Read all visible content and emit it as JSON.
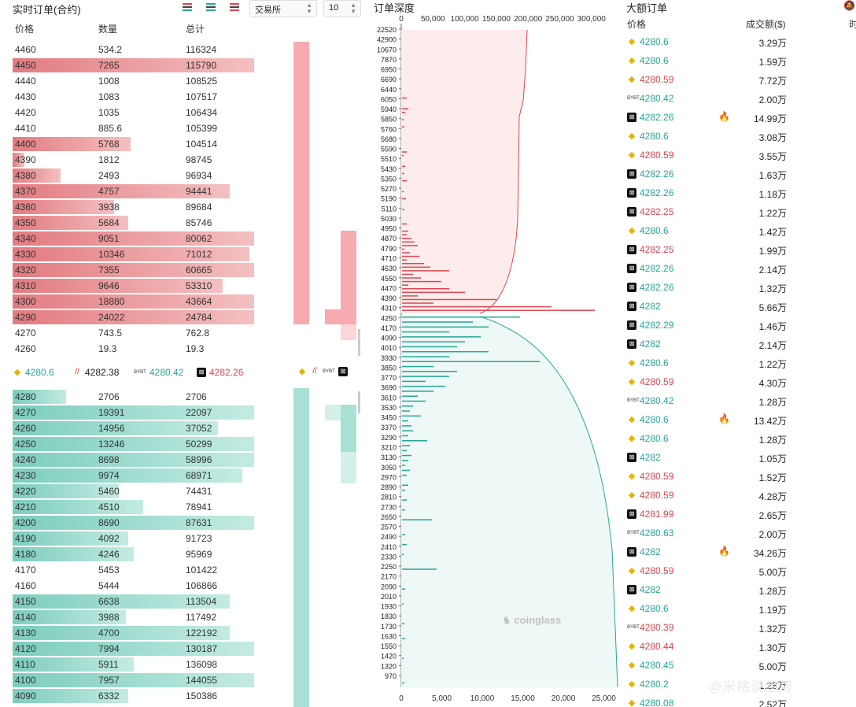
{
  "orderbook": {
    "title": "实时订单(合约)",
    "exchange_select": "交易所",
    "depth_select": "10",
    "col_price": "价格",
    "col_qty": "数量",
    "col_total": "总计",
    "asks": [
      {
        "price": "4460",
        "qty": "534.2",
        "total": "116324",
        "fill": 0.0
      },
      {
        "price": "4450",
        "qty": "7265",
        "total": "115790",
        "fill": 1.0
      },
      {
        "price": "4440",
        "qty": "1008",
        "total": "108525",
        "fill": 0.0
      },
      {
        "price": "4430",
        "qty": "1083",
        "total": "107517",
        "fill": 0.0
      },
      {
        "price": "4420",
        "qty": "1035",
        "total": "106434",
        "fill": 0.0
      },
      {
        "price": "4410",
        "qty": "885.6",
        "total": "105399",
        "fill": 0.0
      },
      {
        "price": "4400",
        "qty": "5768",
        "total": "104514",
        "fill": 0.49
      },
      {
        "price": "4390",
        "qty": "1812",
        "total": "98745",
        "fill": 0.05
      },
      {
        "price": "4380",
        "qty": "2493",
        "total": "96934",
        "fill": 0.2
      },
      {
        "price": "4370",
        "qty": "4757",
        "total": "94441",
        "fill": 0.9
      },
      {
        "price": "4360",
        "qty": "3938",
        "total": "89684",
        "fill": 0.42
      },
      {
        "price": "4350",
        "qty": "5684",
        "total": "85746",
        "fill": 0.48
      },
      {
        "price": "4340",
        "qty": "9051",
        "total": "80062",
        "fill": 1.0
      },
      {
        "price": "4330",
        "qty": "10346",
        "total": "71012",
        "fill": 0.98
      },
      {
        "price": "4320",
        "qty": "7355",
        "total": "60665",
        "fill": 1.0
      },
      {
        "price": "4310",
        "qty": "9646",
        "total": "53310",
        "fill": 0.87
      },
      {
        "price": "4300",
        "qty": "18880",
        "total": "43664",
        "fill": 1.0
      },
      {
        "price": "4290",
        "qty": "24022",
        "total": "24784",
        "fill": 1.0
      },
      {
        "price": "4270",
        "qty": "743.5",
        "total": "762.8",
        "fill": 0.0
      },
      {
        "price": "4260",
        "qty": "19.3",
        "total": "19.3",
        "fill": 0.0
      }
    ],
    "bids": [
      {
        "price": "4280",
        "qty": "2706",
        "total": "2706",
        "fill": 0.22
      },
      {
        "price": "4270",
        "qty": "19391",
        "total": "22097",
        "fill": 1.0
      },
      {
        "price": "4260",
        "qty": "14956",
        "total": "37052",
        "fill": 0.85
      },
      {
        "price": "4250",
        "qty": "13246",
        "total": "50299",
        "fill": 1.0
      },
      {
        "price": "4240",
        "qty": "8698",
        "total": "58996",
        "fill": 1.0
      },
      {
        "price": "4230",
        "qty": "9974",
        "total": "68971",
        "fill": 0.95
      },
      {
        "price": "4220",
        "qty": "5460",
        "total": "74431",
        "fill": 0.44
      },
      {
        "price": "4210",
        "qty": "4510",
        "total": "78941",
        "fill": 0.54
      },
      {
        "price": "4200",
        "qty": "8690",
        "total": "87631",
        "fill": 1.0
      },
      {
        "price": "4190",
        "qty": "4092",
        "total": "91723",
        "fill": 0.48
      },
      {
        "price": "4180",
        "qty": "4246",
        "total": "95969",
        "fill": 0.5
      },
      {
        "price": "4170",
        "qty": "5453",
        "total": "101422",
        "fill": 0.0
      },
      {
        "price": "4160",
        "qty": "5444",
        "total": "106866",
        "fill": 0.0
      },
      {
        "price": "4150",
        "qty": "6638",
        "total": "113504",
        "fill": 0.9
      },
      {
        "price": "4140",
        "qty": "3988",
        "total": "117492",
        "fill": 0.47
      },
      {
        "price": "4130",
        "qty": "4700",
        "total": "122192",
        "fill": 0.9
      },
      {
        "price": "4120",
        "qty": "7994",
        "total": "130187",
        "fill": 1.0
      },
      {
        "price": "4110",
        "qty": "5911",
        "total": "136098",
        "fill": 0.5
      },
      {
        "price": "4100",
        "qty": "7957",
        "total": "144055",
        "fill": 1.0
      },
      {
        "price": "4090",
        "qty": "6332",
        "total": "150386",
        "fill": 0.48
      }
    ],
    "ticker": [
      {
        "exchange": "binance",
        "icon": "binance-icon",
        "price": "4280.6",
        "color": "green"
      },
      {
        "exchange": "coinbase",
        "icon": "coinbase-icon",
        "price": "4282.38",
        "color": "dark"
      },
      {
        "exchange": "bybit",
        "icon": "bybit-icon",
        "price": "4280.42",
        "color": "green"
      },
      {
        "exchange": "okx",
        "icon": "okx-icon",
        "price": "4282.26",
        "color": "red"
      }
    ]
  },
  "depth_chart": {
    "title": "订单深度",
    "top_axis": [
      "0",
      "50,000",
      "100,000",
      "150,000",
      "200,000",
      "250,000",
      "300,000"
    ],
    "bottom_axis": [
      "0",
      "5,000",
      "10,000",
      "15,000",
      "20,000",
      "25,000"
    ],
    "price_labels": [
      "22520",
      "42900",
      "10670",
      "7870",
      "6950",
      "6690",
      "6440",
      "6050",
      "5940",
      "5850",
      "5760",
      "5680",
      "5590",
      "5510",
      "5430",
      "5350",
      "5270",
      "5190",
      "5110",
      "5030",
      "4950",
      "4870",
      "4790",
      "4710",
      "4630",
      "4550",
      "4470",
      "4390",
      "4310",
      "4250",
      "4170",
      "4090",
      "4010",
      "3930",
      "3850",
      "3770",
      "3690",
      "3610",
      "3530",
      "3450",
      "3370",
      "3290",
      "3210",
      "3130",
      "3050",
      "2970",
      "2890",
      "2810",
      "2730",
      "2650",
      "2570",
      "2490",
      "2410",
      "2330",
      "2250",
      "2170",
      "2090",
      "2010",
      "1930",
      "1830",
      "1730",
      "1630",
      "1550",
      "1420",
      "1320",
      "970"
    ],
    "watermark": "coinglass"
  },
  "large_orders": {
    "title": "大额订单",
    "col_price": "价格",
    "col_amount": "成交额($)",
    "col_time": "时",
    "rows": [
      {
        "ex": "binance",
        "price": "4280.6",
        "side": "g",
        "amount": "3.29万",
        "hot": false
      },
      {
        "ex": "binance",
        "price": "4280.6",
        "side": "g",
        "amount": "1.59万",
        "hot": false
      },
      {
        "ex": "binance",
        "price": "4280.59",
        "side": "r",
        "amount": "7.72万",
        "hot": false
      },
      {
        "ex": "bybit",
        "price": "4280.42",
        "side": "g",
        "amount": "2.00万",
        "hot": false
      },
      {
        "ex": "okx",
        "price": "4282.26",
        "side": "g",
        "amount": "14.99万",
        "hot": true
      },
      {
        "ex": "binance",
        "price": "4280.6",
        "side": "g",
        "amount": "3.08万",
        "hot": false
      },
      {
        "ex": "binance",
        "price": "4280.59",
        "side": "r",
        "amount": "3.55万",
        "hot": false
      },
      {
        "ex": "okx",
        "price": "4282.26",
        "side": "g",
        "amount": "1.63万",
        "hot": false
      },
      {
        "ex": "okx",
        "price": "4282.26",
        "side": "g",
        "amount": "1.18万",
        "hot": false
      },
      {
        "ex": "okx",
        "price": "4282.25",
        "side": "r",
        "amount": "1.22万",
        "hot": false
      },
      {
        "ex": "binance",
        "price": "4280.6",
        "side": "g",
        "amount": "1.42万",
        "hot": false
      },
      {
        "ex": "okx",
        "price": "4282.25",
        "side": "r",
        "amount": "1.99万",
        "hot": false
      },
      {
        "ex": "okx",
        "price": "4282.26",
        "side": "g",
        "amount": "2.14万",
        "hot": false
      },
      {
        "ex": "okx",
        "price": "4282.26",
        "side": "g",
        "amount": "1.32万",
        "hot": false
      },
      {
        "ex": "okx",
        "price": "4282",
        "side": "g",
        "amount": "5.66万",
        "hot": false
      },
      {
        "ex": "okx",
        "price": "4282.29",
        "side": "g",
        "amount": "1.46万",
        "hot": false
      },
      {
        "ex": "okx",
        "price": "4282",
        "side": "g",
        "amount": "2.14万",
        "hot": false
      },
      {
        "ex": "binance",
        "price": "4280.6",
        "side": "g",
        "amount": "1.22万",
        "hot": false
      },
      {
        "ex": "binance",
        "price": "4280.59",
        "side": "r",
        "amount": "4.30万",
        "hot": false
      },
      {
        "ex": "bybit",
        "price": "4280.42",
        "side": "g",
        "amount": "1.28万",
        "hot": false
      },
      {
        "ex": "binance",
        "price": "4280.6",
        "side": "g",
        "amount": "13.42万",
        "hot": true
      },
      {
        "ex": "binance",
        "price": "4280.6",
        "side": "g",
        "amount": "1.28万",
        "hot": false
      },
      {
        "ex": "okx",
        "price": "4282",
        "side": "g",
        "amount": "1.05万",
        "hot": false
      },
      {
        "ex": "binance",
        "price": "4280.59",
        "side": "r",
        "amount": "1.52万",
        "hot": false
      },
      {
        "ex": "binance",
        "price": "4280.59",
        "side": "r",
        "amount": "4.28万",
        "hot": false
      },
      {
        "ex": "okx",
        "price": "4281.99",
        "side": "r",
        "amount": "2.65万",
        "hot": false
      },
      {
        "ex": "bybit",
        "price": "4280.63",
        "side": "g",
        "amount": "2.00万",
        "hot": false
      },
      {
        "ex": "okx",
        "price": "4282",
        "side": "g",
        "amount": "34.26万",
        "hot": true
      },
      {
        "ex": "binance",
        "price": "4280.59",
        "side": "r",
        "amount": "5.00万",
        "hot": false
      },
      {
        "ex": "okx",
        "price": "4282",
        "side": "g",
        "amount": "1.28万",
        "hot": false
      },
      {
        "ex": "binance",
        "price": "4280.6",
        "side": "g",
        "amount": "1.19万",
        "hot": false
      },
      {
        "ex": "bybit",
        "price": "4280.39",
        "side": "r",
        "amount": "1.32万",
        "hot": false
      },
      {
        "ex": "binance",
        "price": "4280.44",
        "side": "r",
        "amount": "1.30万",
        "hot": false
      },
      {
        "ex": "binance",
        "price": "4280.45",
        "side": "g",
        "amount": "5.00万",
        "hot": false
      },
      {
        "ex": "binance",
        "price": "4280.2",
        "side": "g",
        "amount": "1.28万",
        "hot": false
      },
      {
        "ex": "binance",
        "price": "4280.08",
        "side": "g",
        "amount": "2.52万",
        "hot": false
      }
    ]
  },
  "footer_watermark": "@米格说趋势"
}
